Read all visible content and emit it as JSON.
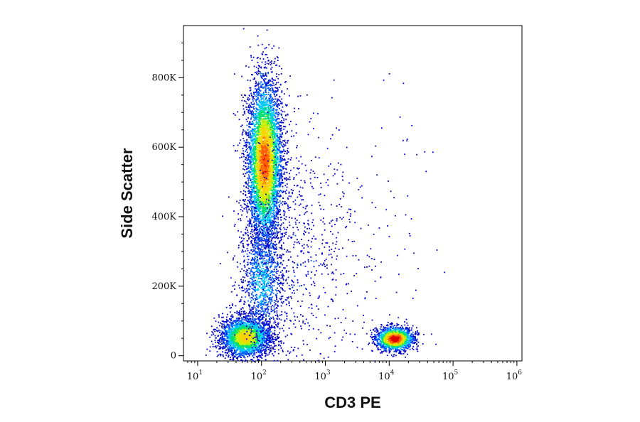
{
  "chart_data": {
    "type": "scatter",
    "subtype": "flow-cytometry-density-dot-plot",
    "xlabel": "CD3 PE",
    "ylabel": "Side Scatter",
    "x_scale": "log",
    "xlim": [
      6,
      1200000
    ],
    "ylim": [
      -15000,
      950000
    ],
    "x_ticks": [
      {
        "value": 10,
        "base": "10",
        "exp": "1"
      },
      {
        "value": 100,
        "base": "10",
        "exp": "2"
      },
      {
        "value": 1000,
        "base": "10",
        "exp": "3"
      },
      {
        "value": 10000,
        "base": "10",
        "exp": "4"
      },
      {
        "value": 100000,
        "base": "10",
        "exp": "5"
      },
      {
        "value": 1000000,
        "base": "10",
        "exp": "6"
      }
    ],
    "y_ticks": [
      {
        "value": 0,
        "label": "0"
      },
      {
        "value": 200000,
        "label": "200K"
      },
      {
        "value": 400000,
        "label": "400K"
      },
      {
        "value": 600000,
        "label": "600K"
      },
      {
        "value": 800000,
        "label": "800K"
      }
    ],
    "grid": false,
    "legend": "none",
    "density_colormap": [
      "#0000c8",
      "#0058ff",
      "#00c8ff",
      "#00e070",
      "#c8f000",
      "#ffd000",
      "#ff6000",
      "#e00000"
    ],
    "populations": [
      {
        "x_center": 110,
        "y_center": 560000,
        "x_spread_log": 0.14,
        "y_spread": 120000,
        "events": 5200,
        "peak_density": 0.85
      },
      {
        "x_center": 55,
        "y_center": 55000,
        "x_spread_log": 0.2,
        "y_spread": 30000,
        "events": 2600,
        "peak_density": 0.7
      },
      {
        "x_center": 12000,
        "y_center": 50000,
        "x_spread_log": 0.15,
        "y_spread": 17000,
        "events": 1600,
        "peak_density": 1.0
      },
      {
        "x_center": 100,
        "y_center": 220000,
        "x_spread_log": 0.18,
        "y_spread": 90000,
        "events": 1100,
        "peak_density": 0.3
      },
      {
        "x_center": 400,
        "y_center": 300000,
        "x_spread_log": 0.45,
        "y_spread": 200000,
        "events": 700,
        "peak_density": 0.08
      },
      {
        "x_center": 12000,
        "y_center": 350000,
        "x_spread_log": 0.35,
        "y_spread": 180000,
        "events": 60,
        "peak_density": 0.03
      }
    ]
  }
}
